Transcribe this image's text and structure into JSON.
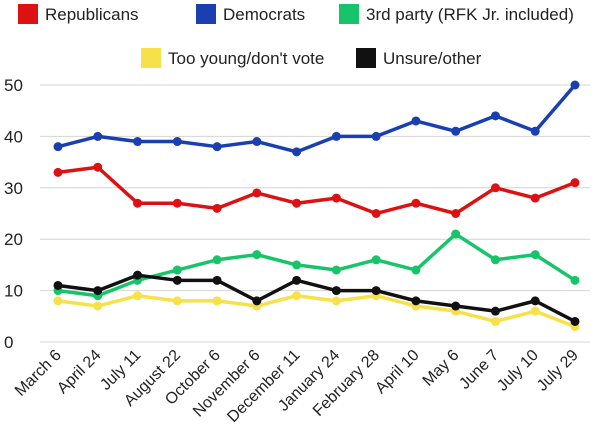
{
  "chart_data": {
    "type": "line",
    "title": "",
    "xlabel": "",
    "ylabel": "",
    "categories": [
      "March 6",
      "April 24",
      "July 11",
      "August 22",
      "October 6",
      "November 6",
      "December 11",
      "January 24",
      "February 28",
      "April 10",
      "May 6",
      "June 7",
      "July 10",
      "July 29"
    ],
    "ylim": [
      0,
      50
    ],
    "yticks": [
      0,
      10,
      20,
      30,
      40,
      50
    ],
    "grid": "horizontal",
    "legend_position": "top",
    "series": [
      {
        "name": "Republicans",
        "color": "#dd1111",
        "values": [
          33,
          34,
          27,
          27,
          26,
          29,
          27,
          28,
          25,
          27,
          25,
          30,
          28,
          31
        ]
      },
      {
        "name": "Democrats",
        "color": "#1a3fb0",
        "values": [
          38,
          40,
          39,
          39,
          38,
          39,
          37,
          40,
          40,
          43,
          41,
          44,
          41,
          50
        ]
      },
      {
        "name": "3rd party (RFK Jr. included)",
        "color": "#18c46a",
        "values": [
          10,
          9,
          12,
          14,
          16,
          17,
          15,
          14,
          16,
          14,
          21,
          16,
          17,
          12
        ]
      },
      {
        "name": "Too young/don't vote",
        "color": "#f7e14a",
        "values": [
          8,
          7,
          9,
          8,
          8,
          7,
          9,
          8,
          9,
          7,
          6,
          4,
          6,
          3
        ]
      },
      {
        "name": "Unsure/other",
        "color": "#111111",
        "values": [
          11,
          10,
          13,
          12,
          12,
          8,
          12,
          10,
          10,
          8,
          7,
          6,
          8,
          4
        ]
      }
    ]
  }
}
